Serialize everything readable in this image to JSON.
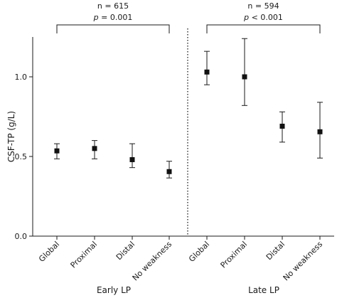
{
  "chart_data": {
    "type": "scatter",
    "ylabel": "CSF-TP (g/L)",
    "ylim": [
      0,
      1.25
    ],
    "yticks": [
      "0.0",
      "0.5",
      "1.0"
    ],
    "grid": false,
    "panels": [
      {
        "group_label": "Early LP",
        "n_label": "n = 615",
        "p_prefix": "p",
        "p_rest": " = 0.001",
        "categories": [
          "Global",
          "Proximal",
          "Distal",
          "No weakness"
        ],
        "values": [
          0.535,
          0.55,
          0.48,
          0.405
        ],
        "lower": [
          0.485,
          0.485,
          0.43,
          0.365
        ],
        "upper": [
          0.58,
          0.6,
          0.58,
          0.47
        ]
      },
      {
        "group_label": "Late LP",
        "n_label": "n = 594",
        "p_prefix": "p",
        "p_rest": " < 0.001",
        "categories": [
          "Global",
          "Proximal",
          "Distal",
          "No weakness"
        ],
        "values": [
          1.03,
          1.0,
          0.69,
          0.655
        ],
        "lower": [
          0.95,
          0.82,
          0.59,
          0.49
        ],
        "upper": [
          1.16,
          1.24,
          0.78,
          0.84
        ]
      }
    ]
  }
}
